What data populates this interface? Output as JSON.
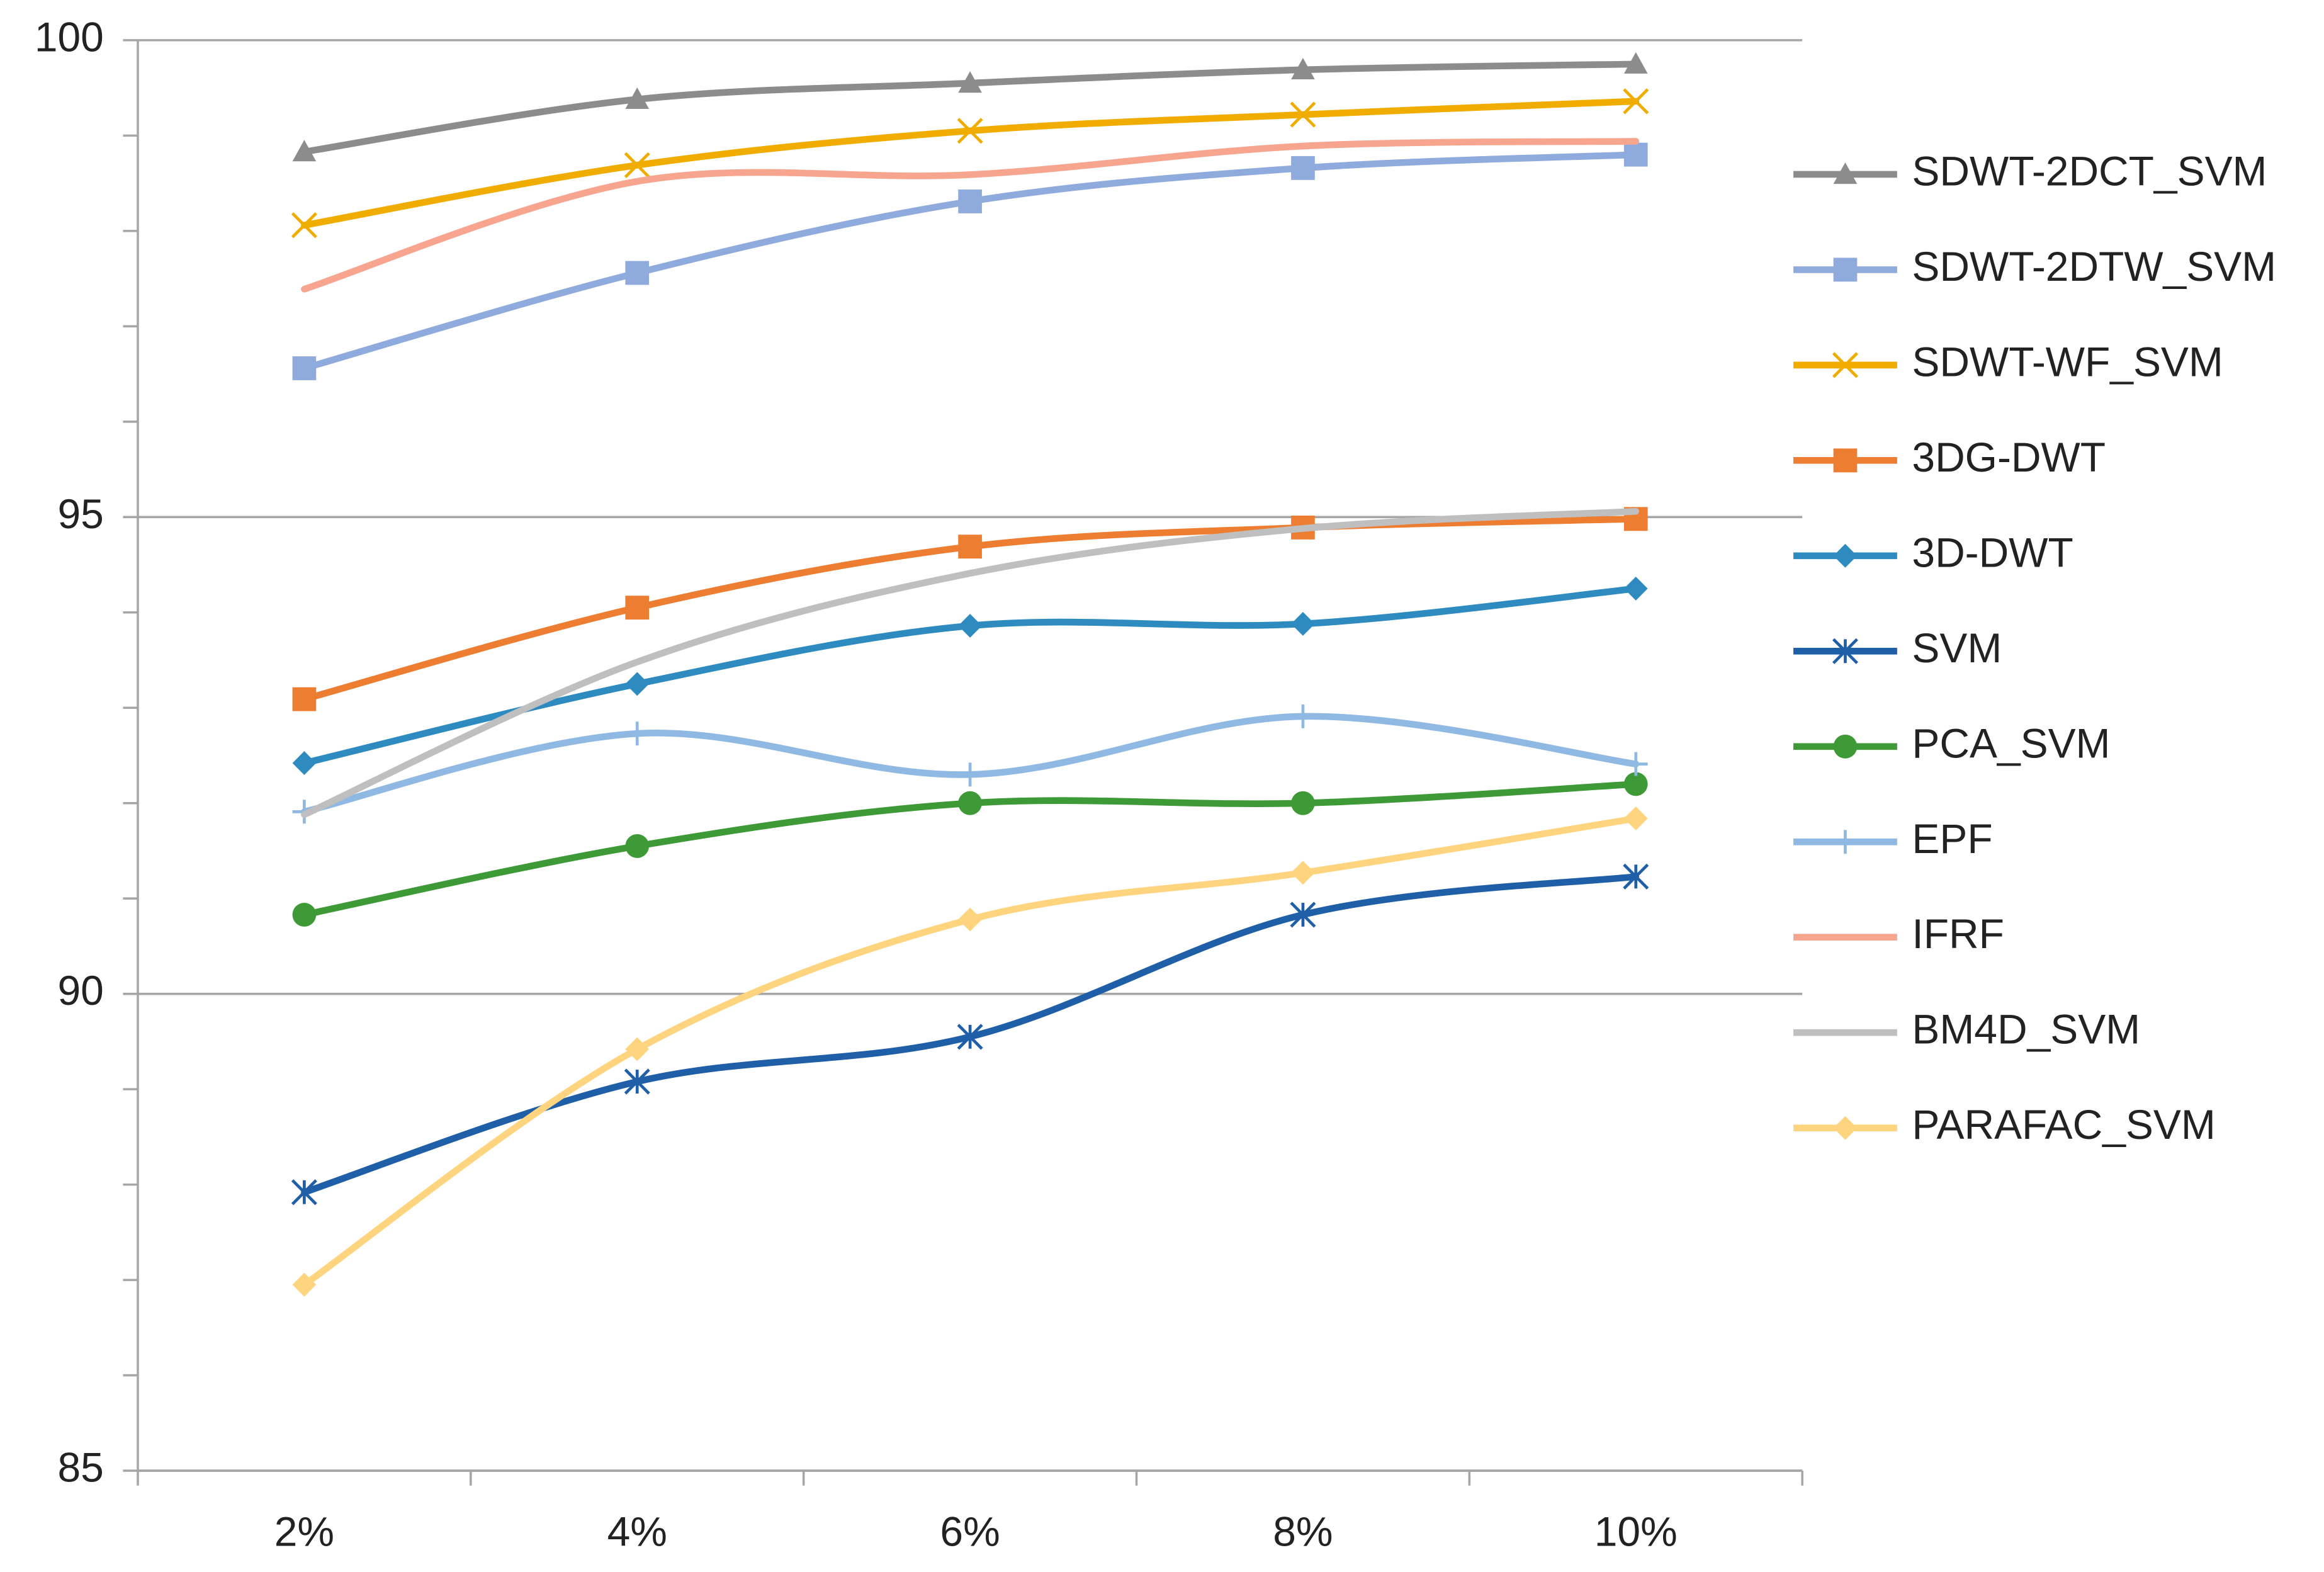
{
  "chart_data": {
    "type": "line",
    "categories": [
      "2%",
      "4%",
      "6%",
      "8%",
      "10%"
    ],
    "ylim": [
      85,
      100
    ],
    "yticks": [
      85,
      90,
      95,
      100
    ],
    "grid": true,
    "legend": "right",
    "series": [
      {
        "name": "SDWT-2DCT_SVM",
        "color": "#8c8c8c",
        "marker": "triangle",
        "values": [
          98.83,
          99.38,
          99.55,
          99.69,
          99.75
        ]
      },
      {
        "name": "SDWT-2DTW_SVM",
        "color": "#8faadc",
        "marker": "square",
        "values": [
          96.56,
          97.56,
          98.31,
          98.66,
          98.8
        ]
      },
      {
        "name": "SDWT-WF_SVM",
        "color": "#f0ad00",
        "marker": "x",
        "values": [
          98.06,
          98.69,
          99.05,
          99.22,
          99.36
        ]
      },
      {
        "name": "3DG-DWT",
        "color": "#ed7d31",
        "marker": "square",
        "values": [
          93.09,
          94.05,
          94.69,
          94.89,
          94.98
        ]
      },
      {
        "name": "3D-DWT",
        "color": "#2e8bc0",
        "marker": "diamond",
        "values": [
          92.42,
          93.25,
          93.86,
          93.88,
          94.25
        ]
      },
      {
        "name": "SVM",
        "color": "#1f5fa8",
        "marker": "asterisk",
        "values": [
          87.92,
          89.08,
          89.55,
          90.83,
          91.23
        ]
      },
      {
        "name": "PCA_SVM",
        "color": "#3d9a37",
        "marker": "circle",
        "values": [
          90.83,
          91.55,
          92.0,
          92.0,
          92.2
        ]
      },
      {
        "name": "EPF",
        "color": "#8fb9e3",
        "marker": "plus",
        "values": [
          91.91,
          92.73,
          92.3,
          92.91,
          92.41
        ]
      },
      {
        "name": "IFRF",
        "color": "#f7a58f",
        "marker": "none",
        "values": [
          97.39,
          98.52,
          98.59,
          98.89,
          98.94
        ]
      },
      {
        "name": "BM4D_SVM",
        "color": "#bfbfbf",
        "marker": "none",
        "values": [
          91.88,
          93.48,
          94.41,
          94.88,
          95.06
        ]
      },
      {
        "name": "PARAFAC_SVM",
        "color": "#ffd47f",
        "marker": "diamond",
        "values": [
          86.95,
          89.42,
          90.78,
          91.27,
          91.84
        ]
      }
    ]
  }
}
